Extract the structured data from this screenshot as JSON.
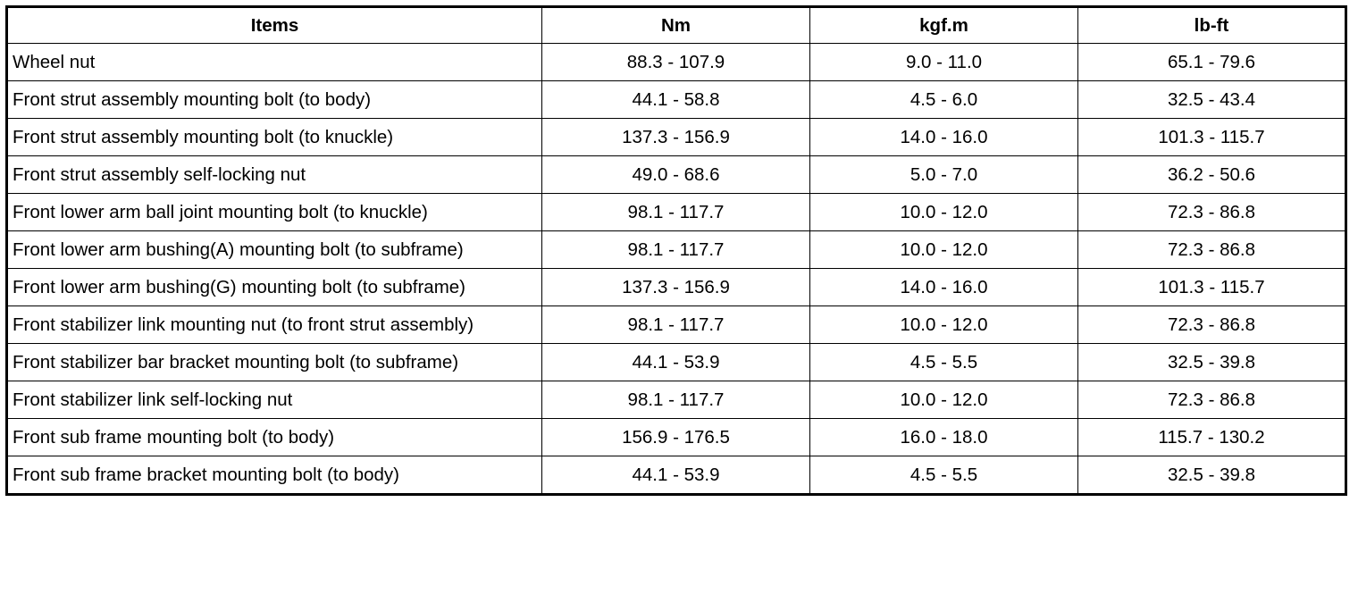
{
  "table": {
    "header": [
      "Items",
      "Nm",
      "kgf.m",
      "lb-ft"
    ],
    "rows": [
      [
        "Wheel nut",
        "88.3 - 107.9",
        "9.0 - 11.0",
        "65.1 - 79.6"
      ],
      [
        "Front strut assembly mounting bolt (to body)",
        "44.1 - 58.8",
        "4.5 - 6.0",
        "32.5 - 43.4"
      ],
      [
        "Front strut assembly mounting bolt (to knuckle)",
        "137.3 - 156.9",
        "14.0 - 16.0",
        "101.3 - 115.7"
      ],
      [
        "Front strut assembly self-locking nut",
        "49.0 - 68.6",
        "5.0 - 7.0",
        "36.2 - 50.6"
      ],
      [
        "Front lower arm ball joint mounting bolt (to knuckle)",
        "98.1 - 117.7",
        "10.0 - 12.0",
        "72.3 - 86.8"
      ],
      [
        "Front lower arm bushing(A) mounting bolt (to subframe)",
        "98.1 - 117.7",
        "10.0 - 12.0",
        "72.3 - 86.8"
      ],
      [
        "Front lower arm bushing(G) mounting bolt (to subframe)",
        "137.3 - 156.9",
        "14.0 - 16.0",
        "101.3 - 115.7"
      ],
      [
        "Front stabilizer link mounting nut (to front strut assembly)",
        "98.1 - 117.7",
        "10.0 - 12.0",
        "72.3 - 86.8"
      ],
      [
        "Front stabilizer bar bracket mounting bolt (to subframe)",
        "44.1 - 53.9",
        "4.5 - 5.5",
        "32.5 - 39.8"
      ],
      [
        "Front stabilizer link self-locking nut",
        "98.1 - 117.7",
        "10.0 - 12.0",
        "72.3 - 86.8"
      ],
      [
        "Front sub frame mounting bolt (to body)",
        "156.9 - 176.5",
        "16.0 - 18.0",
        "115.7 - 130.2"
      ],
      [
        "Front sub frame bracket mounting bolt (to body)",
        "44.1 - 53.9",
        "4.5 - 5.5",
        "32.5 - 39.8"
      ]
    ]
  }
}
